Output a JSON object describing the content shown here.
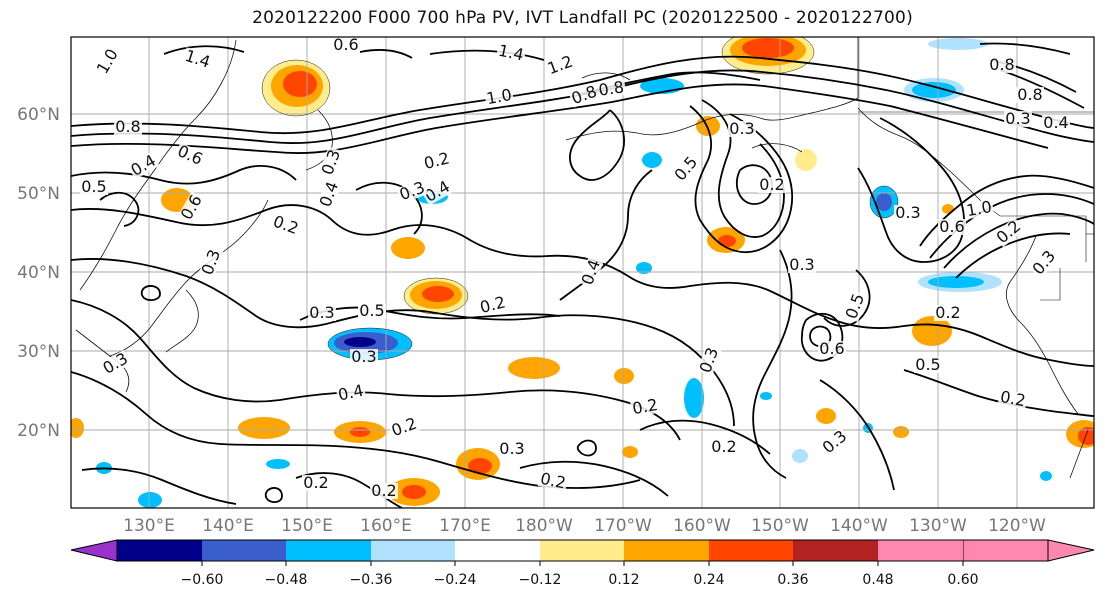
{
  "title": "2020122200 F000 700 hPa PV, IVT Landfall PC (2020122500 - 2020122700)",
  "latitude_labels": [
    "60°N",
    "50°N",
    "40°N",
    "30°N",
    "20°N"
  ],
  "longitude_labels": [
    "130°E",
    "140°E",
    "150°E",
    "160°E",
    "170°E",
    "180°W",
    "170°W",
    "160°W",
    "150°W",
    "140°W",
    "130°W",
    "120°W"
  ],
  "colorbar": {
    "ticks": [
      "−0.60",
      "−0.48",
      "−0.36",
      "−0.24",
      "−0.12",
      "0.12",
      "0.24",
      "0.36",
      "0.48",
      "0.60"
    ],
    "colors": [
      "#9932cc",
      "#00008b",
      "#3a5fcd",
      "#00bfff",
      "#b0e2ff",
      "#ffffff",
      "#ffec8b",
      "#ffa500",
      "#ff4500",
      "#b22222",
      "#ff88b0"
    ]
  },
  "contour_labels": [
    "0.6",
    "1.4",
    "1.4",
    "1.2",
    "1.0",
    "0.8",
    "0.8",
    "1.0",
    "0.8",
    "0.6",
    "0.5",
    "0.4",
    "0.6",
    "0.4",
    "0.3",
    "0.2",
    "0.3",
    "0.2",
    "0.4",
    "0.3",
    "0.5",
    "0.3",
    "0.2",
    "0.4",
    "0.3",
    "0.4",
    "0.3",
    "0.3",
    "0.3",
    "0.2",
    "0.2",
    "0.3",
    "0.2",
    "0.2",
    "0.2",
    "0.5",
    "0.2",
    "0.3",
    "0.3",
    "0.3",
    "0.2",
    "0.5",
    "0.6",
    "0.5",
    "0.2",
    "0.3",
    "0.2",
    "0.8",
    "0.8",
    "0.3",
    "0.4",
    "1.0",
    "0.3",
    "0.6",
    "0.2"
  ]
}
